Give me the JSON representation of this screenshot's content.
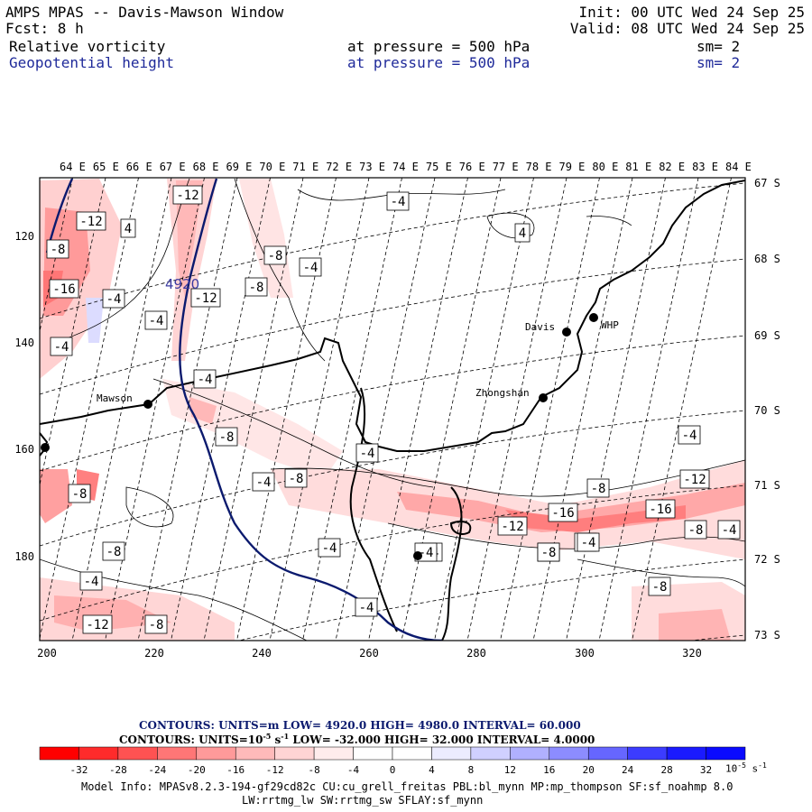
{
  "header": {
    "title": "AMPS MPAS -- Davis-Mawson Window",
    "forecast": "Fcst:     8 h",
    "init": "Init: 00 UTC Wed 24 Sep 25",
    "valid": "Valid: 08 UTC Wed 24 Sep 25",
    "field1": {
      "name": "Relative vorticity",
      "level": "at pressure =  500 hPa",
      "smoothing": "sm= 2"
    },
    "field2": {
      "name": "Geopotential height",
      "level": "at pressure =  500 hPa",
      "smoothing": "sm= 2"
    }
  },
  "map": {
    "lon_labels": [
      "64 E",
      "65 E",
      "66 E",
      "67 E",
      "68 E",
      "69 E",
      "70 E",
      "71 E",
      "72 E",
      "73 E",
      "74 E",
      "75 E",
      "76 E",
      "77 E",
      "78 E",
      "79 E",
      "80 E",
      "81 E",
      "82 E",
      "83 E",
      "84 E"
    ],
    "lat_labels": [
      "67 S",
      "68 S",
      "69 S",
      "70 S",
      "71 S",
      "72 S",
      "73 S"
    ],
    "y_ticks": [
      "120",
      "140",
      "160",
      "180"
    ],
    "x_ticks": [
      "200",
      "220",
      "240",
      "260",
      "280",
      "300",
      "320"
    ],
    "stations": [
      {
        "name": "Davis"
      },
      {
        "name": "WHP"
      },
      {
        "name": "Zhongshan"
      },
      {
        "name": "Mawson"
      }
    ],
    "height_contour_label": "4920",
    "vorticity_labels": [
      "-12",
      "-12",
      "4",
      "-8",
      "-16",
      "-4",
      "-4",
      "-12",
      "-4",
      "-8",
      "-8",
      "-4",
      "-4",
      "4",
      "-4",
      "-8",
      "-8",
      "-4",
      "-8",
      "-4",
      "-4",
      "-8",
      "-4",
      "-4",
      "-8",
      "-12",
      "-8",
      "-4",
      "-4",
      "-12",
      "-16",
      "-8",
      "-16",
      "-12",
      "-8",
      "-4",
      "-4",
      "-8",
      "-4",
      "-8",
      "-4"
    ]
  },
  "contours_legend": {
    "line1": "CONTOURS:  UNITS=m  LOW=  4920.0      HIGH=  4980.0      INTERVAL=    60.000",
    "line2_prefix": "CONTOURS:  UNITS=10",
    "line2_exp": "-5",
    "line2_mid": " s",
    "line2_exp2": "-1",
    "line2_rest": "  LOW=  -32.000        HIGH=  32.000       INTERVAL=    4.0000"
  },
  "colorbar": {
    "labels": [
      "-32",
      "-28",
      "-24",
      "-20",
      "-16",
      "-12",
      "-8",
      "-4",
      "0",
      "4",
      "8",
      "12",
      "16",
      "20",
      "24",
      "28",
      "32"
    ],
    "units_prefix": "10",
    "units_exp": "-5",
    "units_mid": " s",
    "units_exp2": "-1",
    "colors": [
      "#ff0000",
      "#ff2b2b",
      "#ff5252",
      "#ff7676",
      "#ff9a9a",
      "#ffbaba",
      "#ffd4d4",
      "#ffecec",
      "#ffffff",
      "#ffffff",
      "#ececff",
      "#d0d0ff",
      "#b0b0ff",
      "#8c8cff",
      "#6666ff",
      "#3c3cff",
      "#0a0aff"
    ]
  },
  "model_info": {
    "line1": "Model Info: MPASv8.2.3-194-gf29cd82c CU:cu_grell_freitas PBL:bl_mynn MP:mp_thompson SF:sf_noahmp 8.0",
    "line2": "LW:rrtmg_lw SW:rrtmg_sw SFLAY:sf_mynn"
  }
}
